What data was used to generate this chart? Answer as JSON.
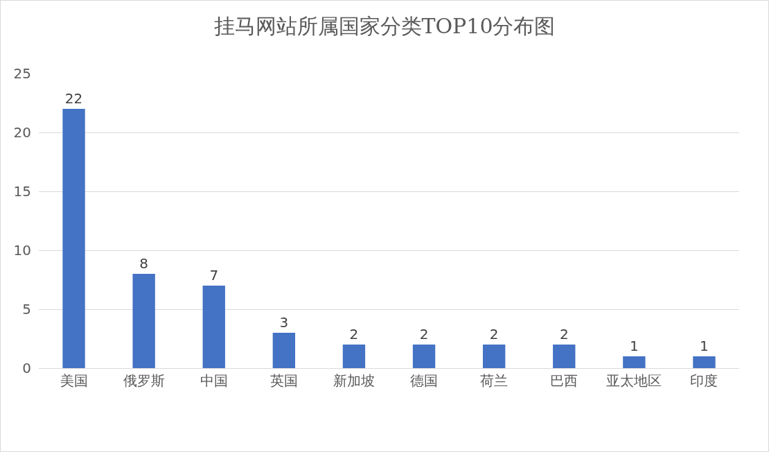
{
  "chart_data": {
    "type": "bar",
    "title": "挂马网站所属国家分类TOP10分布图",
    "categories": [
      "美国",
      "俄罗斯",
      "中国",
      "英国",
      "新加坡",
      "德国",
      "荷兰",
      "巴西",
      "亚太地区",
      "印度"
    ],
    "values": [
      22,
      8,
      7,
      3,
      2,
      2,
      2,
      2,
      1,
      1
    ],
    "color": "#4472c4",
    "ylim": [
      0,
      25
    ],
    "yticks": [
      0,
      5,
      10,
      15,
      20,
      25
    ],
    "grid": "y",
    "data_labels": true
  }
}
